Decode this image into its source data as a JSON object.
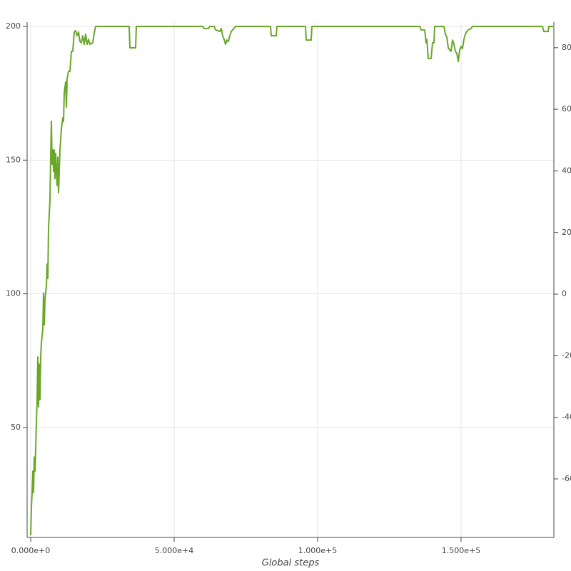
{
  "chart_data": {
    "type": "line",
    "x_label": "Global steps",
    "x": [
      0,
      249,
      498,
      746,
      995,
      1244,
      1493,
      1741,
      1990,
      2239,
      2488,
      2736,
      2985,
      3234,
      3483,
      3731,
      4229,
      4478,
      4726,
      4975,
      5473,
      5721,
      5970,
      6219,
      6468,
      6717,
      6965,
      7214,
      7463,
      7712,
      7960,
      8209,
      8458,
      8707,
      9204,
      9453,
      9702,
      10199,
      10697,
      11194,
      11443,
      11692,
      12189,
      12438,
      12687,
      13184,
      13682,
      14179,
      14677,
      15174,
      15672,
      16169,
      16667,
      17164,
      17662,
      18159,
      18657,
      19155,
      19652,
      20150,
      20647,
      21642,
      22140,
      22637,
      34329,
      34578,
      36568,
      36816,
      59951,
      60448,
      61942,
      62438,
      63931,
      64429,
      65921,
      66419,
      66916,
      67414,
      67911,
      68409,
      68907,
      69404,
      69902,
      70399,
      71394,
      83583,
      83832,
      85573,
      85822,
      95773,
      96021,
      97763,
      98012,
      135574,
      136072,
      137315,
      137813,
      138062,
      138559,
      139554,
      140052,
      140549,
      140798,
      144032,
      144529,
      145027,
      145524,
      146022,
      146520,
      147017,
      147515,
      148012,
      148510,
      149007,
      149505,
      150003,
      150500,
      150998,
      151495,
      151993,
      152490,
      153485,
      153983,
      178361,
      178858,
      180351,
      180600,
      182093
    ],
    "series": [
      {
        "color": "#6aa628",
        "values": [
          9.7,
          20.3,
          25.7,
          33.7,
          25.7,
          39,
          33.7,
          41.7,
          52.4,
          60.4,
          76.4,
          57.7,
          73.7,
          60.4,
          76.4,
          81.7,
          87,
          100.3,
          88.4,
          97.8,
          103.1,
          111.1,
          105.8,
          124.5,
          129.8,
          135.1,
          151.1,
          164.5,
          148.5,
          153.8,
          145.8,
          153.8,
          143.1,
          152.5,
          140.5,
          151.1,
          137.8,
          153.8,
          161.8,
          165.8,
          164.5,
          175.2,
          179.2,
          169.8,
          180.5,
          183.2,
          183.2,
          190.7,
          190.7,
          197.9,
          198.4,
          196.5,
          197.9,
          194.4,
          193.9,
          196.5,
          193.3,
          197.1,
          193.3,
          195.2,
          193.3,
          193.9,
          197.6,
          200,
          200,
          192,
          192,
          200,
          200,
          199.2,
          199.2,
          200,
          200,
          198.7,
          198.1,
          199.2,
          196.5,
          195.2,
          193.3,
          194.9,
          194.4,
          196.5,
          198.1,
          198.7,
          200,
          200,
          196.5,
          196.5,
          200,
          200,
          194.9,
          194.9,
          200,
          200,
          198.7,
          198.7,
          193.9,
          195.2,
          188,
          188,
          193.9,
          193.9,
          200,
          200,
          197.1,
          196,
          192,
          191.2,
          190.7,
          194.9,
          193.3,
          190.7,
          189.9,
          186.9,
          191.2,
          192.5,
          191.7,
          195.2,
          197.1,
          198.1,
          198.7,
          199.2,
          200,
          200,
          198.1,
          198.1,
          200,
          200
        ]
      }
    ],
    "xlim": [
      -1244,
      182338
    ],
    "ylim": [
      8.9,
      201.6
    ],
    "y2lim": [
      -79,
      88.3
    ],
    "xticks": [
      {
        "value": 0,
        "label": "0.000e+0"
      },
      {
        "value": 50000,
        "label": "5.000e+4"
      },
      {
        "value": 100000,
        "label": "1.000e+5"
      },
      {
        "value": 150000,
        "label": "1.500e+5"
      }
    ],
    "yticks": [
      50,
      100,
      150,
      200
    ],
    "y2ticks": [
      -60,
      -40,
      -20,
      0,
      20,
      40,
      60,
      80
    ],
    "grid": true
  }
}
